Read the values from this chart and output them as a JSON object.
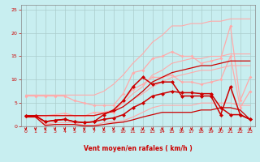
{
  "xlabel": "Vent moyen/en rafales ( km/h )",
  "bg_color": "#c8eef0",
  "grid_color": "#b0d0d4",
  "xlim": [
    -0.5,
    23.5
  ],
  "ylim": [
    0,
    26
  ],
  "xticks": [
    0,
    1,
    2,
    3,
    4,
    5,
    6,
    7,
    8,
    9,
    10,
    11,
    12,
    13,
    14,
    15,
    16,
    17,
    18,
    19,
    20,
    21,
    22,
    23
  ],
  "yticks": [
    0,
    5,
    10,
    15,
    20,
    25
  ],
  "series": [
    {
      "x": [
        0,
        1,
        2,
        3,
        4,
        5,
        6,
        7,
        8,
        9,
        10,
        11,
        12,
        13,
        14,
        15,
        16,
        17,
        18,
        19,
        20,
        21,
        22,
        23
      ],
      "y": [
        6.7,
        6.7,
        6.7,
        6.7,
        6.7,
        6.7,
        6.7,
        6.7,
        7.5,
        9.0,
        11.0,
        13.5,
        15.5,
        18.0,
        19.5,
        21.5,
        21.5,
        22.0,
        22.0,
        22.5,
        22.5,
        23.0,
        23.0,
        23.0
      ],
      "color": "#ffaaaa",
      "lw": 0.8,
      "marker": null,
      "ms": 0
    },
    {
      "x": [
        0,
        1,
        2,
        3,
        4,
        5,
        6,
        7,
        8,
        9,
        10,
        11,
        12,
        13,
        14,
        15,
        16,
        17,
        18,
        19,
        20,
        21,
        22,
        23
      ],
      "y": [
        2.3,
        2.3,
        2.3,
        2.3,
        2.3,
        2.3,
        2.3,
        2.3,
        3.0,
        3.5,
        5.0,
        7.0,
        8.5,
        11.0,
        12.0,
        13.5,
        14.0,
        14.5,
        14.5,
        15.0,
        15.0,
        15.5,
        15.5,
        15.5
      ],
      "color": "#ffaaaa",
      "lw": 0.8,
      "marker": null,
      "ms": 0
    },
    {
      "x": [
        0,
        1,
        2,
        3,
        4,
        5,
        6,
        7,
        8,
        9,
        10,
        11,
        12,
        13,
        14,
        15,
        16,
        17,
        18,
        19,
        20,
        21,
        22,
        23
      ],
      "y": [
        2.3,
        2.3,
        2.3,
        2.3,
        2.3,
        2.3,
        2.3,
        2.3,
        2.8,
        3.2,
        4.2,
        5.8,
        7.0,
        8.5,
        9.5,
        10.5,
        11.0,
        11.5,
        12.0,
        12.0,
        12.5,
        13.0,
        13.0,
        13.0
      ],
      "color": "#ffaaaa",
      "lw": 0.8,
      "marker": null,
      "ms": 0
    },
    {
      "x": [
        0,
        1,
        2,
        3,
        4,
        5,
        6,
        7,
        8,
        9,
        10,
        11,
        12,
        13,
        14,
        15,
        16,
        17,
        18,
        19,
        20,
        21,
        22,
        23
      ],
      "y": [
        2.2,
        2.2,
        0.4,
        0.8,
        0.8,
        0.8,
        0.2,
        0.2,
        0.8,
        1.0,
        1.2,
        2.0,
        3.0,
        4.0,
        4.5,
        4.5,
        4.5,
        4.5,
        5.0,
        5.0,
        5.0,
        5.0,
        4.5,
        4.5
      ],
      "color": "#ffaaaa",
      "lw": 0.8,
      "marker": null,
      "ms": 0
    },
    {
      "x": [
        0,
        1,
        2,
        3,
        4,
        5,
        6,
        7,
        8,
        9,
        10,
        11,
        12,
        13,
        14,
        15,
        16,
        17,
        18,
        19,
        20,
        21,
        22,
        23
      ],
      "y": [
        6.5,
        6.5,
        6.5,
        6.5,
        6.5,
        5.5,
        5.0,
        4.5,
        4.5,
        4.5,
        7.0,
        11.5,
        12.0,
        14.5,
        15.0,
        16.0,
        15.0,
        15.0,
        13.5,
        14.0,
        14.5,
        21.5,
        5.5,
        10.5
      ],
      "color": "#ffaaaa",
      "lw": 0.9,
      "marker": "D",
      "ms": 2.0
    },
    {
      "x": [
        0,
        1,
        2,
        3,
        4,
        5,
        6,
        7,
        8,
        9,
        10,
        11,
        12,
        13,
        14,
        15,
        16,
        17,
        18,
        19,
        20,
        21,
        22,
        23
      ],
      "y": [
        2.0,
        2.0,
        2.3,
        2.5,
        2.8,
        2.3,
        2.2,
        3.0,
        3.0,
        3.0,
        5.5,
        8.0,
        9.0,
        10.5,
        10.5,
        11.0,
        9.5,
        9.5,
        9.0,
        9.5,
        10.0,
        15.0,
        4.0,
        7.5
      ],
      "color": "#ffaaaa",
      "lw": 0.9,
      "marker": "D",
      "ms": 2.0
    },
    {
      "x": [
        0,
        1,
        2,
        3,
        4,
        5,
        6,
        7,
        8,
        9,
        10,
        11,
        12,
        13,
        14,
        15,
        16,
        17,
        18,
        19,
        20,
        21,
        22,
        23
      ],
      "y": [
        2.3,
        2.3,
        2.3,
        2.3,
        2.3,
        2.3,
        2.3,
        2.3,
        2.8,
        3.2,
        4.2,
        5.8,
        7.5,
        9.5,
        10.5,
        11.5,
        12.0,
        12.5,
        13.0,
        13.0,
        13.5,
        14.0,
        14.0,
        14.0
      ],
      "color": "#cc0000",
      "lw": 0.9,
      "marker": null,
      "ms": 0
    },
    {
      "x": [
        0,
        1,
        2,
        3,
        4,
        5,
        6,
        7,
        8,
        9,
        10,
        11,
        12,
        13,
        14,
        15,
        16,
        17,
        18,
        19,
        20,
        21,
        22,
        23
      ],
      "y": [
        2.0,
        2.0,
        0.2,
        0.4,
        0.4,
        0.4,
        0.1,
        0.1,
        0.4,
        0.7,
        0.9,
        1.4,
        2.0,
        2.5,
        3.0,
        3.0,
        3.0,
        3.0,
        3.5,
        3.5,
        4.0,
        4.0,
        3.5,
        1.5
      ],
      "color": "#cc0000",
      "lw": 0.9,
      "marker": null,
      "ms": 0
    },
    {
      "x": [
        0,
        1,
        2,
        3,
        4,
        5,
        6,
        7,
        8,
        9,
        10,
        11,
        12,
        13,
        14,
        15,
        16,
        17,
        18,
        19,
        20,
        21,
        22,
        23
      ],
      "y": [
        2.3,
        2.3,
        1.0,
        1.3,
        1.5,
        1.0,
        0.8,
        1.0,
        2.5,
        3.5,
        5.5,
        8.5,
        10.5,
        9.0,
        9.5,
        9.5,
        6.5,
        6.5,
        6.5,
        6.5,
        2.5,
        8.5,
        2.5,
        1.5
      ],
      "color": "#cc0000",
      "lw": 1.1,
      "marker": "D",
      "ms": 2.5
    },
    {
      "x": [
        0,
        1,
        2,
        3,
        4,
        5,
        6,
        7,
        8,
        9,
        10,
        11,
        12,
        13,
        14,
        15,
        16,
        17,
        18,
        19,
        20,
        21,
        22,
        23
      ],
      "y": [
        2.2,
        2.2,
        1.0,
        1.3,
        1.5,
        1.0,
        0.8,
        1.0,
        1.5,
        1.8,
        2.5,
        4.0,
        5.0,
        6.5,
        7.0,
        7.5,
        7.2,
        7.2,
        7.0,
        7.0,
        4.0,
        2.5,
        2.5,
        1.5
      ],
      "color": "#cc0000",
      "lw": 1.1,
      "marker": "D",
      "ms": 2.5
    }
  ],
  "arrow_color": "#cc0000",
  "tick_label_color": "#cc0000",
  "xlabel_color": "#cc0000"
}
